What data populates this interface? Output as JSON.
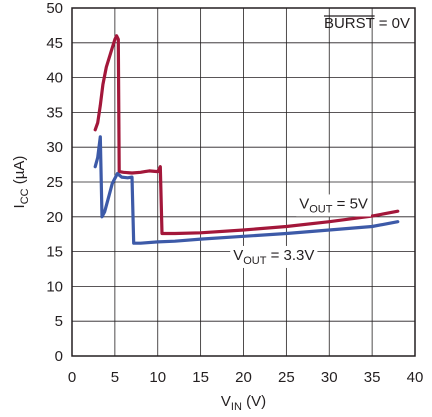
{
  "chart_data": {
    "type": "line",
    "xlabel": {
      "main": "V",
      "sub": "IN",
      "unit": " (V)"
    },
    "ylabel": {
      "main": "I",
      "sub": "CC",
      "unit": " (µA)"
    },
    "xlim": [
      0,
      40
    ],
    "ylim": [
      0,
      50
    ],
    "x_ticks": [
      0,
      5,
      10,
      15,
      20,
      25,
      30,
      35,
      40
    ],
    "y_ticks": [
      0,
      5,
      10,
      15,
      20,
      25,
      30,
      35,
      40,
      45,
      50
    ],
    "grid": true,
    "annotation": {
      "overlined": "BURST",
      "rest": " = 0V",
      "position": "top-right"
    },
    "series": [
      {
        "name_main": "V",
        "name_sub": "OUT",
        "name_rest": " = 5V",
        "color": "#a3173a",
        "points": [
          [
            2.7,
            32.5
          ],
          [
            3.0,
            33.5
          ],
          [
            3.3,
            36
          ],
          [
            3.6,
            39
          ],
          [
            4.0,
            41.5
          ],
          [
            4.5,
            43.5
          ],
          [
            5.0,
            45.5
          ],
          [
            5.2,
            46
          ],
          [
            5.4,
            45.5
          ],
          [
            5.5,
            26.5
          ],
          [
            6.0,
            26.4
          ],
          [
            7.0,
            26.3
          ],
          [
            8.0,
            26.4
          ],
          [
            8.5,
            26.5
          ],
          [
            9.0,
            26.6
          ],
          [
            10.0,
            26.5
          ],
          [
            10.3,
            27.2
          ],
          [
            10.5,
            17.6
          ],
          [
            12.0,
            17.6
          ],
          [
            15.0,
            17.7
          ],
          [
            20.0,
            18.1
          ],
          [
            25.0,
            18.6
          ],
          [
            30.0,
            19.3
          ],
          [
            35.0,
            20.1
          ],
          [
            38.0,
            20.8
          ]
        ]
      },
      {
        "name_main": "V",
        "name_sub": "OUT",
        "name_rest": " = 3.3V",
        "color": "#3d5aa8",
        "points": [
          [
            2.7,
            27.2
          ],
          [
            3.0,
            28.5
          ],
          [
            3.3,
            31.5
          ],
          [
            3.5,
            20.0
          ],
          [
            3.8,
            20.7
          ],
          [
            4.2,
            22.5
          ],
          [
            4.7,
            24.8
          ],
          [
            5.3,
            26.2
          ],
          [
            5.8,
            25.7
          ],
          [
            6.5,
            25.6
          ],
          [
            7.0,
            25.7
          ],
          [
            7.2,
            16.2
          ],
          [
            8.0,
            16.2
          ],
          [
            10.0,
            16.4
          ],
          [
            12.0,
            16.5
          ],
          [
            15.0,
            16.8
          ],
          [
            20.0,
            17.2
          ],
          [
            25.0,
            17.6
          ],
          [
            30.0,
            18.1
          ],
          [
            35.0,
            18.6
          ],
          [
            38.0,
            19.3
          ]
        ]
      }
    ]
  }
}
